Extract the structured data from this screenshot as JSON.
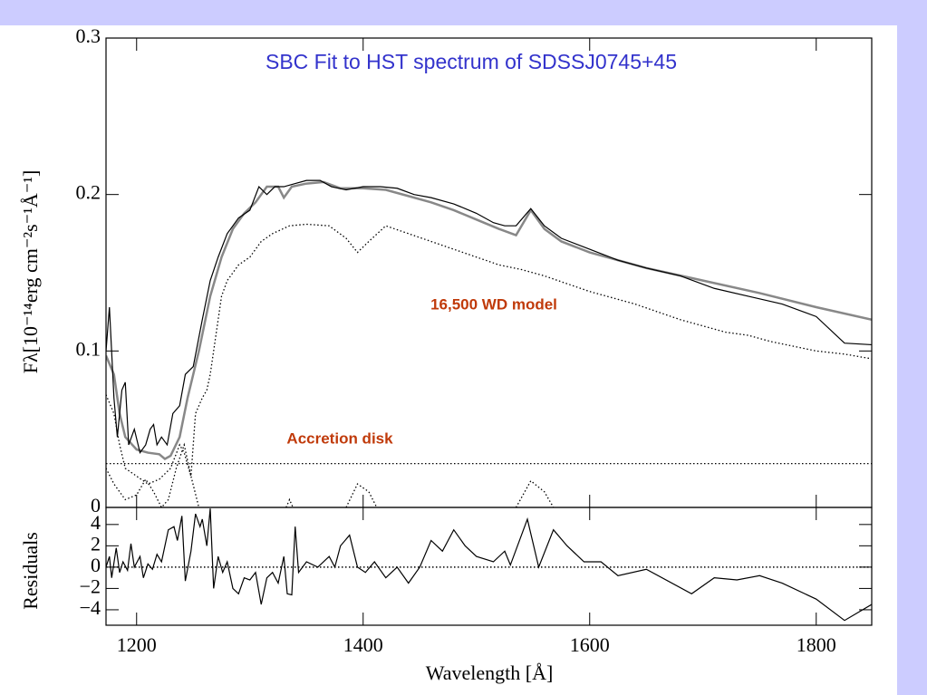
{
  "chart_data": [
    {
      "type": "line",
      "title": "SBC Fit to HST spectrum of SDSSJ0745+45",
      "ylabel": "Fλ[10⁻¹⁴erg cm⁻²s⁻¹Å⁻¹]",
      "annotations": [
        "16,500 WD model",
        "Accretion disk"
      ],
      "xlim": [
        1173,
        1849
      ],
      "ylim": [
        0,
        0.3
      ],
      "yticks": [
        0,
        0.1,
        0.2,
        0.3
      ],
      "series": [
        {
          "color": "#888888",
          "style": "solid",
          "width": 2.5,
          "x": [
            1173,
            1180,
            1185,
            1190,
            1200,
            1210,
            1220,
            1225,
            1230,
            1238,
            1245,
            1255,
            1265,
            1275,
            1285,
            1295,
            1305,
            1315,
            1325,
            1330,
            1337,
            1350,
            1365,
            1380,
            1400,
            1420,
            1440,
            1460,
            1480,
            1500,
            1520,
            1535,
            1548,
            1560,
            1575,
            1600,
            1650,
            1700,
            1750,
            1800,
            1849
          ],
          "values": [
            0.097,
            0.085,
            0.06,
            0.045,
            0.037,
            0.035,
            0.034,
            0.031,
            0.033,
            0.045,
            0.07,
            0.1,
            0.135,
            0.16,
            0.178,
            0.188,
            0.195,
            0.205,
            0.205,
            0.198,
            0.205,
            0.207,
            0.208,
            0.204,
            0.204,
            0.203,
            0.199,
            0.195,
            0.19,
            0.184,
            0.178,
            0.174,
            0.19,
            0.178,
            0.17,
            0.163,
            0.153,
            0.145,
            0.137,
            0.128,
            0.12
          ]
        },
        {
          "color": "#000000",
          "style": "solid",
          "width": 1.2,
          "x": [
            1173,
            1176,
            1180,
            1183,
            1187,
            1190,
            1193,
            1198,
            1203,
            1208,
            1212,
            1215,
            1218,
            1222,
            1227,
            1232,
            1238,
            1243,
            1250,
            1258,
            1265,
            1272,
            1280,
            1290,
            1300,
            1308,
            1315,
            1322,
            1330,
            1340,
            1350,
            1362,
            1372,
            1385,
            1400,
            1415,
            1430,
            1445,
            1460,
            1480,
            1500,
            1515,
            1525,
            1535,
            1548,
            1560,
            1575,
            1600,
            1625,
            1650,
            1680,
            1710,
            1740,
            1770,
            1800,
            1825,
            1849
          ],
          "values": [
            0.1,
            0.128,
            0.07,
            0.045,
            0.075,
            0.08,
            0.04,
            0.05,
            0.035,
            0.04,
            0.05,
            0.053,
            0.04,
            0.045,
            0.04,
            0.06,
            0.065,
            0.085,
            0.09,
            0.12,
            0.145,
            0.16,
            0.175,
            0.185,
            0.19,
            0.205,
            0.2,
            0.205,
            0.205,
            0.207,
            0.209,
            0.209,
            0.205,
            0.203,
            0.205,
            0.205,
            0.204,
            0.2,
            0.198,
            0.194,
            0.188,
            0.182,
            0.18,
            0.18,
            0.191,
            0.18,
            0.172,
            0.165,
            0.158,
            0.153,
            0.148,
            0.14,
            0.135,
            0.13,
            0.122,
            0.105,
            0.104
          ]
        },
        {
          "color": "#000000",
          "style": "dotted",
          "width": 1.3,
          "x": [
            1173,
            1180,
            1185,
            1190,
            1200,
            1210,
            1220,
            1230,
            1238,
            1242,
            1248,
            1252,
            1258,
            1262,
            1265,
            1270,
            1275,
            1280,
            1290,
            1300,
            1310,
            1320,
            1335,
            1350,
            1370,
            1385,
            1395,
            1405,
            1420,
            1440,
            1460,
            1480,
            1500,
            1520,
            1540,
            1560,
            1580,
            1600,
            1620,
            1640,
            1660,
            1680,
            1700,
            1720,
            1740,
            1760,
            1780,
            1800,
            1825,
            1849
          ],
          "values": [
            0.072,
            0.06,
            0.04,
            0.025,
            0.02,
            0.015,
            0.018,
            0.025,
            0.04,
            0.035,
            0.02,
            0.06,
            0.07,
            0.075,
            0.085,
            0.11,
            0.135,
            0.145,
            0.155,
            0.16,
            0.17,
            0.175,
            0.18,
            0.181,
            0.18,
            0.172,
            0.163,
            0.17,
            0.18,
            0.175,
            0.17,
            0.165,
            0.16,
            0.155,
            0.152,
            0.148,
            0.143,
            0.138,
            0.134,
            0.13,
            0.125,
            0.12,
            0.116,
            0.112,
            0.11,
            0.106,
            0.103,
            0.1,
            0.098,
            0.095
          ]
        },
        {
          "color": "#000000",
          "style": "dotted",
          "width": 1.3,
          "x": [
            1173,
            1849
          ],
          "values": [
            0.028,
            0.028
          ]
        },
        {
          "color": "#000000",
          "style": "dotted",
          "width": 1.3,
          "x": [
            1173,
            1180,
            1190,
            1200,
            1208,
            1215,
            1222,
            1228,
            1235,
            1242,
            1248,
            1255,
            null,
            1332,
            1335,
            1338,
            null,
            1385,
            1395,
            1405,
            1412,
            null,
            1535,
            1548,
            1560,
            1568
          ],
          "values": [
            0.025,
            0.015,
            0.005,
            0.008,
            0.018,
            0.01,
            0,
            0.005,
            0.025,
            0.04,
            0.02,
            0,
            null,
            0,
            0.005,
            0,
            null,
            0,
            0.015,
            0.01,
            0,
            null,
            0,
            0.017,
            0.01,
            0
          ]
        }
      ]
    },
    {
      "type": "line",
      "xlabel": "Wavelength [Å]",
      "ylabel": "Residuals",
      "xlim": [
        1173,
        1849
      ],
      "ylim": [
        -5.45,
        5.6
      ],
      "xticks": [
        1200,
        1400,
        1600,
        1800
      ],
      "yticks": [
        {
          "value": -4,
          "label": "−4"
        },
        {
          "value": -2,
          "label": "−2"
        },
        0,
        2,
        4
      ],
      "series": [
        {
          "color": "#000000",
          "style": "dotted",
          "width": 1.5,
          "x": [
            1173,
            1849
          ],
          "values": [
            0,
            0
          ]
        },
        {
          "color": "#000000",
          "style": "solid",
          "width": 1.2,
          "x": [
            1173,
            1176,
            1178,
            1182,
            1185,
            1188,
            1192,
            1195,
            1198,
            1203,
            1206,
            1210,
            1214,
            1218,
            1222,
            1228,
            1233,
            1236,
            1240,
            1243,
            1248,
            1252,
            1256,
            1258,
            1262,
            1265,
            1268,
            1272,
            1276,
            1280,
            1285,
            1290,
            1295,
            1300,
            1305,
            1310,
            1315,
            1320,
            1325,
            1330,
            1333,
            1337,
            1340,
            1343,
            1350,
            1360,
            1370,
            1375,
            1380,
            1388,
            1395,
            1402,
            1410,
            1420,
            1430,
            1440,
            1450,
            1460,
            1470,
            1480,
            1490,
            1500,
            1515,
            1525,
            1530,
            1545,
            1555,
            1568,
            1580,
            1595,
            1610,
            1625,
            1650,
            1690,
            1710,
            1730,
            1750,
            1770,
            1800,
            1825,
            1849
          ],
          "values": [
            0,
            1,
            -1,
            1.8,
            -0.5,
            0.5,
            -0.3,
            2.2,
            0,
            1,
            -1,
            0.3,
            -0.2,
            1.2,
            0.5,
            3.5,
            3.8,
            2.5,
            4.8,
            -1.3,
            1.5,
            5,
            3.8,
            4.5,
            2,
            5.5,
            -2,
            1,
            -0.5,
            0.5,
            -2,
            -2.5,
            -1,
            -1.2,
            -0.5,
            -3.5,
            -1,
            -0.5,
            -1.5,
            1,
            -2.5,
            -2.6,
            3.8,
            -0.5,
            0.5,
            0,
            1,
            0,
            2,
            3,
            0,
            -0.5,
            0.5,
            -1,
            0,
            -1.5,
            0,
            2.5,
            1.5,
            3.5,
            2,
            1,
            0.5,
            1.5,
            0.2,
            4.5,
            0,
            3.5,
            2,
            0.5,
            0.5,
            -0.8,
            -0.2,
            -2.5,
            -1,
            -1.2,
            -0.8,
            -1.5,
            -3,
            -5,
            -3.5
          ]
        }
      ]
    }
  ]
}
